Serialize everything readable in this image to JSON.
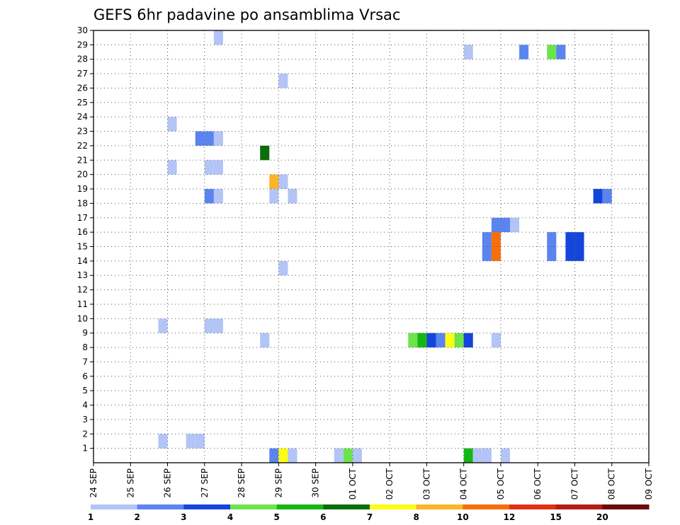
{
  "chart_data": {
    "type": "heatmap",
    "title": "GEFS 6hr padavine po ansamblima Vrsac",
    "xlabel": "",
    "ylabel": "",
    "x_tick_labels": [
      "24 SEP",
      "25 SEP",
      "26 SEP",
      "27 SEP",
      "28 SEP",
      "29 SEP",
      "30 SEP",
      "01 OCT",
      "02 OCT",
      "03 OCT",
      "04 OCT",
      "05 OCT",
      "06 OCT",
      "07 OCT",
      "08 OCT",
      "09 OCT"
    ],
    "y_tick_labels": [
      "1",
      "2",
      "3",
      "4",
      "5",
      "6",
      "7",
      "8",
      "9",
      "10",
      "11",
      "12",
      "13",
      "14",
      "15",
      "16",
      "17",
      "18",
      "19",
      "20",
      "21",
      "22",
      "23",
      "24",
      "25",
      "26",
      "27",
      "28",
      "29",
      "30"
    ],
    "x_range": [
      "24 SEP",
      "09 OCT"
    ],
    "y_range": [
      0,
      30
    ],
    "time_step_hours": 6,
    "grid": true,
    "colorbar": {
      "placement": "bottom",
      "labels": [
        "1",
        "2",
        "3",
        "4",
        "5",
        "6",
        "7",
        "8",
        "10",
        "12",
        "15",
        "20"
      ],
      "colors": [
        "#b3c4f6",
        "#5b84f0",
        "#1446dc",
        "#6ce44c",
        "#14b814",
        "#0a6e0a",
        "#fcfc14",
        "#fcb428",
        "#f86e0a",
        "#e03214",
        "#b41e14",
        "#6e0a0a"
      ]
    },
    "cells": [
      {
        "member": 29,
        "time": "27 SEP 06Z",
        "value": 1.5
      },
      {
        "member": 28,
        "time": "04 OCT 00Z",
        "value": 1.5
      },
      {
        "member": 28,
        "time": "05 OCT 12Z",
        "value": 2.5
      },
      {
        "member": 28,
        "time": "06 OCT 06Z",
        "value": 4.5
      },
      {
        "member": 28,
        "time": "06 OCT 12Z",
        "value": 2.5
      },
      {
        "member": 26,
        "time": "29 SEP 00Z",
        "value": 1.5
      },
      {
        "member": 23,
        "time": "26 SEP 00Z",
        "value": 1.5
      },
      {
        "member": 22,
        "time": "26 SEP 18Z",
        "value": 2.5
      },
      {
        "member": 22,
        "time": "27 SEP 00Z",
        "value": 2.5
      },
      {
        "member": 22,
        "time": "27 SEP 06Z",
        "value": 1.5
      },
      {
        "member": 21,
        "time": "28 SEP 12Z",
        "value": 6.5
      },
      {
        "member": 20,
        "time": "26 SEP 00Z",
        "value": 1.5
      },
      {
        "member": 20,
        "time": "27 SEP 00Z",
        "value": 1.5
      },
      {
        "member": 20,
        "time": "27 SEP 06Z",
        "value": 1.5
      },
      {
        "member": 19,
        "time": "28 SEP 18Z",
        "value": 9
      },
      {
        "member": 19,
        "time": "29 SEP 00Z",
        "value": 1.5
      },
      {
        "member": 18,
        "time": "27 SEP 00Z",
        "value": 2.5
      },
      {
        "member": 18,
        "time": "27 SEP 06Z",
        "value": 1.5
      },
      {
        "member": 18,
        "time": "28 SEP 18Z",
        "value": 1.5
      },
      {
        "member": 18,
        "time": "29 SEP 06Z",
        "value": 1.5
      },
      {
        "member": 18,
        "time": "07 OCT 12Z",
        "value": 3.5
      },
      {
        "member": 18,
        "time": "07 OCT 18Z",
        "value": 2.5
      },
      {
        "member": 16,
        "time": "04 OCT 18Z",
        "value": 2.5
      },
      {
        "member": 16,
        "time": "05 OCT 00Z",
        "value": 2.5
      },
      {
        "member": 16,
        "time": "05 OCT 06Z",
        "value": 1.5
      },
      {
        "member": 15,
        "time": "04 OCT 12Z",
        "value": 2.5
      },
      {
        "member": 15,
        "time": "04 OCT 18Z",
        "value": 11
      },
      {
        "member": 15,
        "time": "06 OCT 06Z",
        "value": 2.5
      },
      {
        "member": 15,
        "time": "06 OCT 18Z",
        "value": 3.5
      },
      {
        "member": 15,
        "time": "07 OCT 00Z",
        "value": 3.5
      },
      {
        "member": 14,
        "time": "04 OCT 12Z",
        "value": 2.5
      },
      {
        "member": 14,
        "time": "04 OCT 18Z",
        "value": 11
      },
      {
        "member": 14,
        "time": "06 OCT 06Z",
        "value": 2.5
      },
      {
        "member": 14,
        "time": "06 OCT 18Z",
        "value": 3.5
      },
      {
        "member": 14,
        "time": "07 OCT 00Z",
        "value": 3.5
      },
      {
        "member": 13,
        "time": "29 SEP 00Z",
        "value": 1.5
      },
      {
        "member": 9,
        "time": "25 SEP 18Z",
        "value": 1.5
      },
      {
        "member": 9,
        "time": "27 SEP 00Z",
        "value": 1.5
      },
      {
        "member": 9,
        "time": "27 SEP 06Z",
        "value": 1.5
      },
      {
        "member": 8,
        "time": "28 SEP 12Z",
        "value": 1.5
      },
      {
        "member": 8,
        "time": "02 OCT 12Z",
        "value": 4.5
      },
      {
        "member": 8,
        "time": "02 OCT 18Z",
        "value": 5.5
      },
      {
        "member": 8,
        "time": "03 OCT 00Z",
        "value": 3.5
      },
      {
        "member": 8,
        "time": "03 OCT 06Z",
        "value": 2.5
      },
      {
        "member": 8,
        "time": "03 OCT 12Z",
        "value": 7.5
      },
      {
        "member": 8,
        "time": "03 OCT 18Z",
        "value": 4.5
      },
      {
        "member": 8,
        "time": "04 OCT 00Z",
        "value": 3.5
      },
      {
        "member": 8,
        "time": "04 OCT 18Z",
        "value": 1.5
      },
      {
        "member": 1,
        "time": "25 SEP 18Z",
        "value": 1.5
      },
      {
        "member": 1,
        "time": "26 SEP 12Z",
        "value": 1.5
      },
      {
        "member": 1,
        "time": "26 SEP 18Z",
        "value": 1.5
      },
      {
        "member": 0,
        "time": "28 SEP 18Z",
        "value": 2.5
      },
      {
        "member": 0,
        "time": "29 SEP 00Z",
        "value": 7.5
      },
      {
        "member": 0,
        "time": "29 SEP 06Z",
        "value": 1.5
      },
      {
        "member": 0,
        "time": "30 SEP 12Z",
        "value": 1.5
      },
      {
        "member": 0,
        "time": "30 SEP 18Z",
        "value": 4.5
      },
      {
        "member": 0,
        "time": "01 OCT 00Z",
        "value": 1.5
      },
      {
        "member": 0,
        "time": "04 OCT 00Z",
        "value": 5.5
      },
      {
        "member": 0,
        "time": "04 OCT 06Z",
        "value": 1.5
      },
      {
        "member": 0,
        "time": "04 OCT 12Z",
        "value": 1.5
      },
      {
        "member": 0,
        "time": "05 OCT 00Z",
        "value": 1.5
      }
    ]
  }
}
